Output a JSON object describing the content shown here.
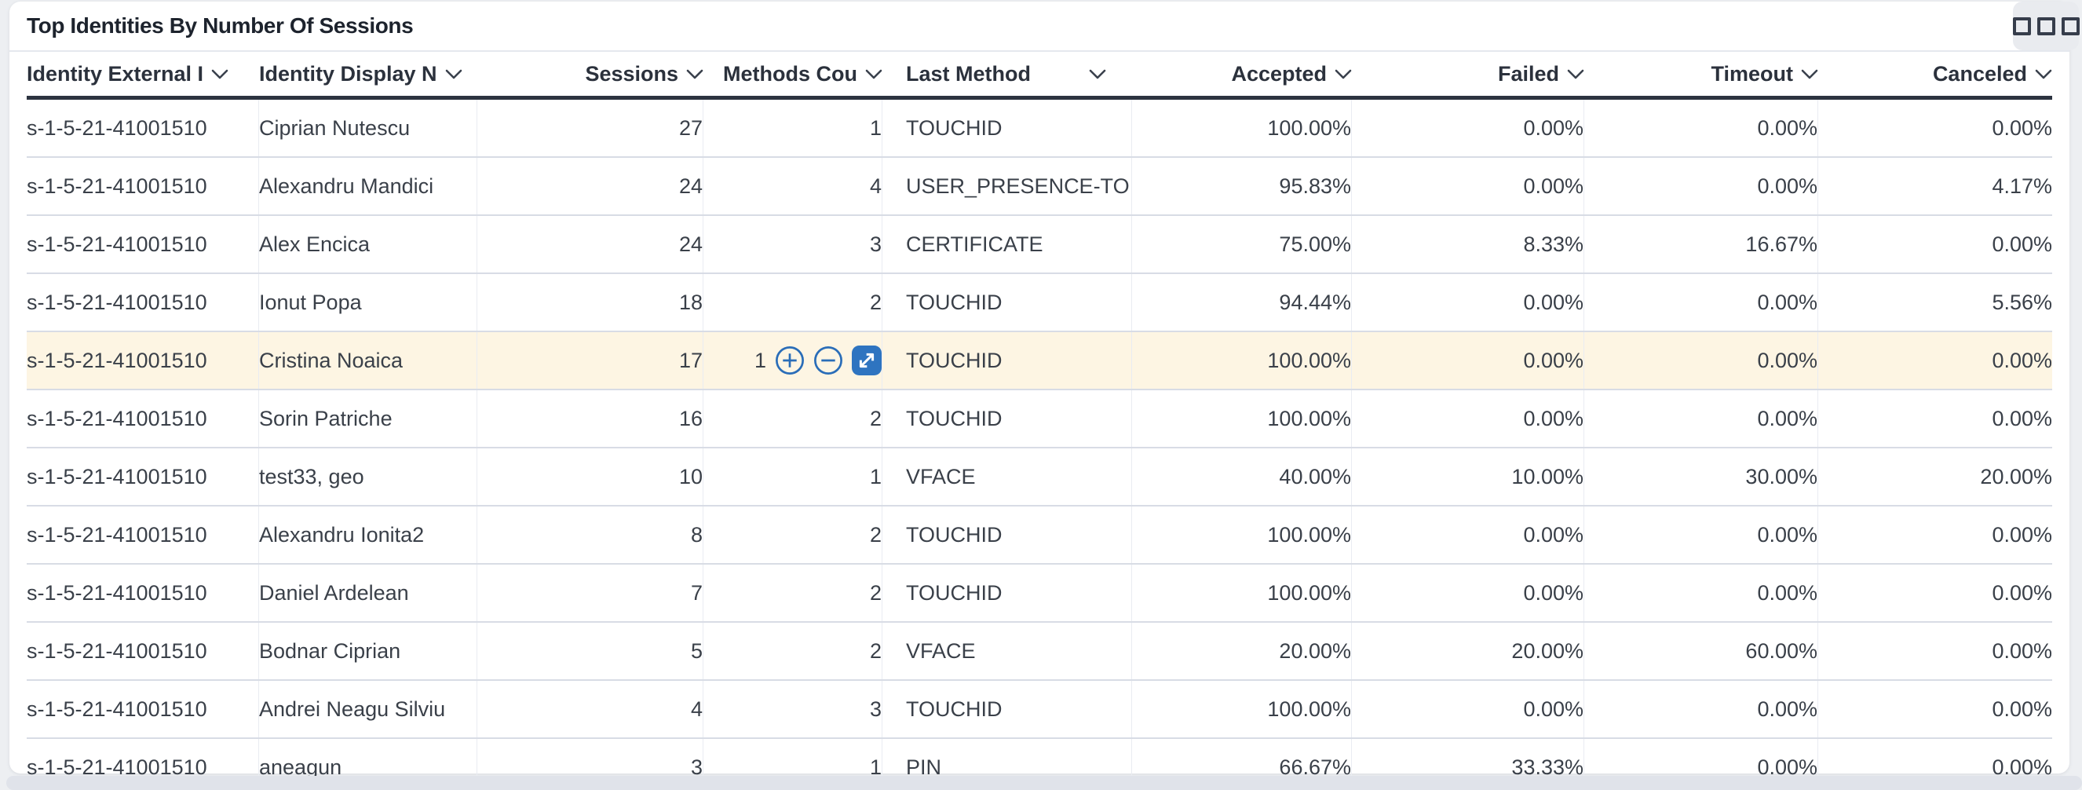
{
  "card": {
    "title": "Top Identities By Number Of Sessions",
    "options_button_icon": "triple-square-menu-icon"
  },
  "table": {
    "columns": [
      {
        "id": "identity_external_id",
        "label": "Identity External I",
        "align": "left"
      },
      {
        "id": "identity_display_name",
        "label": "Identity Display N",
        "align": "left"
      },
      {
        "id": "sessions",
        "label": "Sessions",
        "align": "right"
      },
      {
        "id": "methods_count",
        "label": "Methods Cou",
        "align": "right"
      },
      {
        "id": "last_method",
        "label": "Last Method",
        "align": "left"
      },
      {
        "id": "accepted",
        "label": "Accepted",
        "align": "right"
      },
      {
        "id": "failed",
        "label": "Failed",
        "align": "right"
      },
      {
        "id": "timeout",
        "label": "Timeout",
        "align": "right"
      },
      {
        "id": "canceled",
        "label": "Canceled",
        "align": "right"
      }
    ],
    "rows": [
      {
        "identity_external_id": "s-1-5-21-41001510",
        "identity_display_name": "Ciprian Nutescu",
        "sessions": "27",
        "methods_count": "1",
        "last_method": "TOUCHID",
        "accepted": "100.00%",
        "failed": "0.00%",
        "timeout": "0.00%",
        "canceled": "0.00%"
      },
      {
        "identity_external_id": "s-1-5-21-41001510",
        "identity_display_name": "Alexandru Mandici",
        "sessions": "24",
        "methods_count": "4",
        "last_method": "USER_PRESENCE-TO",
        "accepted": "95.83%",
        "failed": "0.00%",
        "timeout": "0.00%",
        "canceled": "4.17%"
      },
      {
        "identity_external_id": "s-1-5-21-41001510",
        "identity_display_name": "Alex Encica",
        "sessions": "24",
        "methods_count": "3",
        "last_method": "CERTIFICATE",
        "accepted": "75.00%",
        "failed": "8.33%",
        "timeout": "16.67%",
        "canceled": "0.00%"
      },
      {
        "identity_external_id": "s-1-5-21-41001510",
        "identity_display_name": "Ionut Popa",
        "sessions": "18",
        "methods_count": "2",
        "last_method": "TOUCHID",
        "accepted": "94.44%",
        "failed": "0.00%",
        "timeout": "0.00%",
        "canceled": "5.56%"
      },
      {
        "identity_external_id": "s-1-5-21-41001510",
        "identity_display_name": "Cristina Noaica",
        "sessions": "17",
        "methods_count": "1",
        "last_method": "TOUCHID",
        "accepted": "100.00%",
        "failed": "0.00%",
        "timeout": "0.00%",
        "canceled": "0.00%"
      },
      {
        "identity_external_id": "s-1-5-21-41001510",
        "identity_display_name": "Sorin Patriche",
        "sessions": "16",
        "methods_count": "2",
        "last_method": "TOUCHID",
        "accepted": "100.00%",
        "failed": "0.00%",
        "timeout": "0.00%",
        "canceled": "0.00%"
      },
      {
        "identity_external_id": "s-1-5-21-41001510",
        "identity_display_name": "test33, geo",
        "sessions": "10",
        "methods_count": "1",
        "last_method": "VFACE",
        "accepted": "40.00%",
        "failed": "10.00%",
        "timeout": "30.00%",
        "canceled": "20.00%"
      },
      {
        "identity_external_id": "s-1-5-21-41001510",
        "identity_display_name": "Alexandru Ionita2",
        "sessions": "8",
        "methods_count": "2",
        "last_method": "TOUCHID",
        "accepted": "100.00%",
        "failed": "0.00%",
        "timeout": "0.00%",
        "canceled": "0.00%"
      },
      {
        "identity_external_id": "s-1-5-21-41001510",
        "identity_display_name": "Daniel Ardelean",
        "sessions": "7",
        "methods_count": "2",
        "last_method": "TOUCHID",
        "accepted": "100.00%",
        "failed": "0.00%",
        "timeout": "0.00%",
        "canceled": "0.00%"
      },
      {
        "identity_external_id": "s-1-5-21-41001510",
        "identity_display_name": "Bodnar Ciprian",
        "sessions": "5",
        "methods_count": "2",
        "last_method": "VFACE",
        "accepted": "20.00%",
        "failed": "20.00%",
        "timeout": "60.00%",
        "canceled": "0.00%"
      },
      {
        "identity_external_id": "s-1-5-21-41001510",
        "identity_display_name": "Andrei Neagu Silviu",
        "sessions": "4",
        "methods_count": "3",
        "last_method": "TOUCHID",
        "accepted": "100.00%",
        "failed": "0.00%",
        "timeout": "0.00%",
        "canceled": "0.00%"
      },
      {
        "identity_external_id": "s-1-5-21-41001510",
        "identity_display_name": "aneagun",
        "sessions": "3",
        "methods_count": "1",
        "last_method": "PIN",
        "accepted": "66.67%",
        "failed": "33.33%",
        "timeout": "0.00%",
        "canceled": "0.00%"
      }
    ],
    "highlighted_row_index": 4,
    "hover_row_tools": [
      {
        "name": "circle-plus-icon"
      },
      {
        "name": "circle-minus-icon"
      },
      {
        "name": "expand-diagonal-icon"
      }
    ]
  },
  "colors": {
    "accent_blue": "#2e74c0",
    "row_highlight": "#fdf5e3",
    "header_underline": "#2c3340",
    "row_border": "#d8dce5"
  }
}
